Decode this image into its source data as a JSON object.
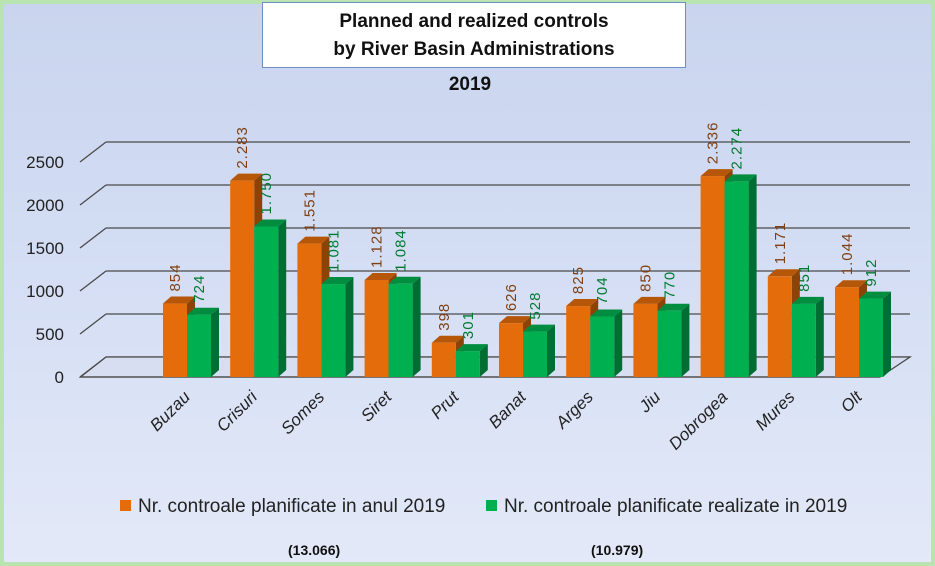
{
  "chart_data": {
    "type": "bar",
    "title_lines": [
      "Planned and realized controls",
      "by River Basin Administrations"
    ],
    "subtitle": "2019",
    "categories": [
      "Buzau",
      "Crisuri",
      "Somes",
      "Siret",
      "Prut",
      "Banat",
      "Arges",
      "Jiu",
      "Dobrogea",
      "Mures",
      "Olt"
    ],
    "series": [
      {
        "name": "Nr. controale planificate in anul 2019",
        "color": "#e46c0a",
        "values": [
          854,
          2283,
          1551,
          1128,
          398,
          626,
          825,
          850,
          2336,
          1171,
          1044
        ],
        "labels": [
          "854",
          "2.283",
          "1.551",
          "1.128",
          "398",
          "626",
          "825",
          "850",
          "2.336",
          "1.171",
          "1.044"
        ],
        "label_color": "#7f3f12",
        "total": "(13.066)"
      },
      {
        "name": "Nr. controale planificate realizate in 2019",
        "color": "#00b050",
        "values": [
          724,
          1750,
          1081,
          1084,
          301,
          528,
          704,
          770,
          2274,
          851,
          912
        ],
        "labels": [
          "724",
          "1.750",
          "1.081",
          "1.084",
          "301",
          "528",
          "704",
          "770",
          "2.274",
          "851",
          "912"
        ],
        "label_color": "#007a30",
        "total": "(10.979)"
      }
    ],
    "y_ticks": [
      0,
      500,
      1000,
      1500,
      2000,
      2500
    ],
    "ylim": [
      0,
      2500
    ],
    "grid": true,
    "legend_position": "bottom"
  }
}
